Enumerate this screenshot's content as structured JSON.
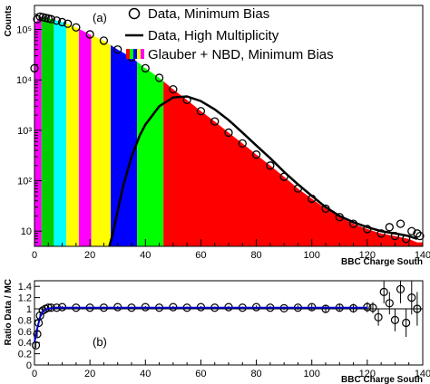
{
  "chart_data": [
    {
      "type": "bar",
      "panel_label": "(a)",
      "xlabel": "BBC Charge South",
      "ylabel": "Counts",
      "xlim": [
        0,
        140
      ],
      "ylim": [
        5,
        300000
      ],
      "yscale": "log",
      "x_ticks": [
        "0",
        "20",
        "40",
        "60",
        "80",
        "100",
        "120",
        "140"
      ],
      "y_ticks": [
        "10",
        "10²",
        "10³",
        "10⁴",
        "10⁵"
      ],
      "legend": {
        "placement": "top-right",
        "entries": [
          {
            "label": "Data, Minimum Bias",
            "marker": "open-circle"
          },
          {
            "label": "Data, High Multiplicity",
            "marker": "line"
          },
          {
            "label": "Glauber + NBD, Minimum Bias",
            "marker": "color-bands"
          }
        ]
      },
      "series": [
        {
          "name": "Glauber + NBD, Minimum Bias",
          "kind": "filled-histogram",
          "bands": [
            {
              "x_min": 0,
              "x_max": 2.5,
              "color": "#ff00ff"
            },
            {
              "x_min": 2.5,
              "x_max": 7,
              "color": "#00cc00"
            },
            {
              "x_min": 7,
              "x_max": 11.5,
              "color": "#00ffff"
            },
            {
              "x_min": 11.5,
              "x_max": 16,
              "color": "#ffff00"
            },
            {
              "x_min": 16,
              "x_max": 20.5,
              "color": "#ff00ff"
            },
            {
              "x_min": 20.5,
              "x_max": 27.5,
              "color": "#ffff00"
            },
            {
              "x_min": 27.5,
              "x_max": 37,
              "color": "#0000ff"
            },
            {
              "x_min": 37,
              "x_max": 46.5,
              "color": "#00ff00"
            },
            {
              "x_min": 46.5,
              "x_max": 140,
              "color": "#ff0000"
            }
          ],
          "x": [
            0,
            1,
            2,
            3,
            4,
            5,
            6,
            8,
            10,
            12,
            15,
            20,
            25,
            30,
            35,
            40,
            45,
            50,
            55,
            60,
            65,
            70,
            75,
            80,
            85,
            90,
            95,
            100,
            105,
            110,
            115,
            120,
            125,
            130,
            135,
            138
          ],
          "y": [
            130000,
            150000,
            180000,
            175000,
            170000,
            165000,
            160000,
            150000,
            140000,
            130000,
            110000,
            80000,
            60000,
            40000,
            28000,
            17000,
            11000,
            6500,
            4000,
            2400,
            1500,
            900,
            550,
            330,
            200,
            120,
            70,
            44,
            28,
            19,
            14,
            11,
            9,
            8,
            7,
            6
          ]
        },
        {
          "name": "Data, Minimum Bias",
          "kind": "points",
          "x": [
            0,
            1,
            2,
            3,
            4,
            5,
            6,
            8,
            10,
            12,
            15,
            20,
            25,
            30,
            35,
            40,
            45,
            50,
            55,
            60,
            65,
            70,
            75,
            80,
            85,
            90,
            95,
            100,
            105,
            110,
            115,
            120,
            125,
            128,
            130,
            132,
            134,
            136,
            138,
            139
          ],
          "y": [
            17000,
            160000,
            180000,
            175000,
            170000,
            165000,
            160000,
            150000,
            140000,
            130000,
            110000,
            80000,
            60000,
            40000,
            28000,
            17000,
            11000,
            6500,
            4000,
            2400,
            1500,
            900,
            550,
            330,
            200,
            120,
            70,
            44,
            28,
            19,
            14,
            11,
            9,
            12,
            8,
            14,
            7,
            10,
            9,
            8
          ]
        },
        {
          "name": "Data, High Multiplicity",
          "kind": "line",
          "x": [
            27,
            28,
            30,
            32,
            35,
            38,
            40,
            45,
            50,
            55,
            60,
            65,
            70,
            75,
            80,
            85,
            90,
            95,
            100,
            105,
            110,
            115,
            120,
            125,
            130,
            135,
            138
          ],
          "y": [
            5,
            8,
            25,
            80,
            300,
            800,
            1300,
            3000,
            4500,
            4700,
            3800,
            2600,
            1600,
            900,
            500,
            280,
            150,
            85,
            50,
            30,
            20,
            15,
            12,
            10,
            9,
            8,
            7
          ]
        }
      ]
    },
    {
      "type": "scatter",
      "panel_label": "(b)",
      "xlabel": "BBC Charge South",
      "ylabel": "Ratio Data / MC",
      "xlim": [
        0,
        140
      ],
      "ylim": [
        0,
        1.5
      ],
      "x_ticks": [
        "0",
        "20",
        "40",
        "60",
        "80",
        "100",
        "120",
        "140"
      ],
      "y_ticks": [
        "0",
        "0.2",
        "0.4",
        "0.6",
        "0.8",
        "1",
        "1.2",
        "1.4"
      ],
      "reference_line": 1,
      "series": [
        {
          "name": "ratio",
          "x": [
            0.5,
            1,
            1.5,
            2,
            3,
            4,
            5,
            6,
            8,
            10,
            15,
            20,
            25,
            30,
            35,
            40,
            45,
            50,
            55,
            60,
            65,
            70,
            75,
            80,
            85,
            90,
            95,
            100,
            105,
            110,
            115,
            120,
            122,
            124,
            126,
            128,
            130,
            132,
            134,
            136,
            138
          ],
          "y": [
            0.35,
            0.55,
            0.75,
            0.88,
            0.97,
            1.0,
            1.02,
            1.02,
            1.02,
            1.03,
            1.02,
            1.02,
            1.02,
            1.03,
            1.02,
            1.03,
            1.02,
            1.03,
            1.02,
            1.03,
            1.02,
            1.03,
            1.02,
            1.03,
            1.02,
            1.01,
            1.02,
            1.03,
            1.0,
            1.02,
            1.01,
            1.03,
            1.02,
            0.85,
            1.3,
            1.1,
            0.8,
            1.35,
            0.75,
            1.2,
            1.0
          ],
          "err": [
            0.05,
            0.05,
            0.04,
            0.03,
            0.02,
            0.02,
            0.02,
            0.02,
            0.02,
            0.02,
            0.02,
            0.02,
            0.02,
            0.02,
            0.02,
            0.02,
            0.02,
            0.02,
            0.02,
            0.02,
            0.02,
            0.02,
            0.02,
            0.03,
            0.03,
            0.03,
            0.04,
            0.05,
            0.06,
            0.07,
            0.08,
            0.09,
            0.1,
            0.15,
            0.2,
            0.2,
            0.2,
            0.25,
            0.25,
            0.3,
            0.3
          ]
        },
        {
          "name": "fit",
          "kind": "line",
          "x": [
            0,
            1,
            2,
            3,
            4,
            5,
            6,
            8,
            10,
            20,
            40,
            60,
            80,
            100,
            120
          ],
          "y": [
            0.4,
            0.65,
            0.85,
            0.95,
            0.99,
            1.0,
            1.01,
            1.02,
            1.02,
            1.02,
            1.02,
            1.02,
            1.02,
            1.02,
            1.02
          ]
        }
      ]
    }
  ]
}
